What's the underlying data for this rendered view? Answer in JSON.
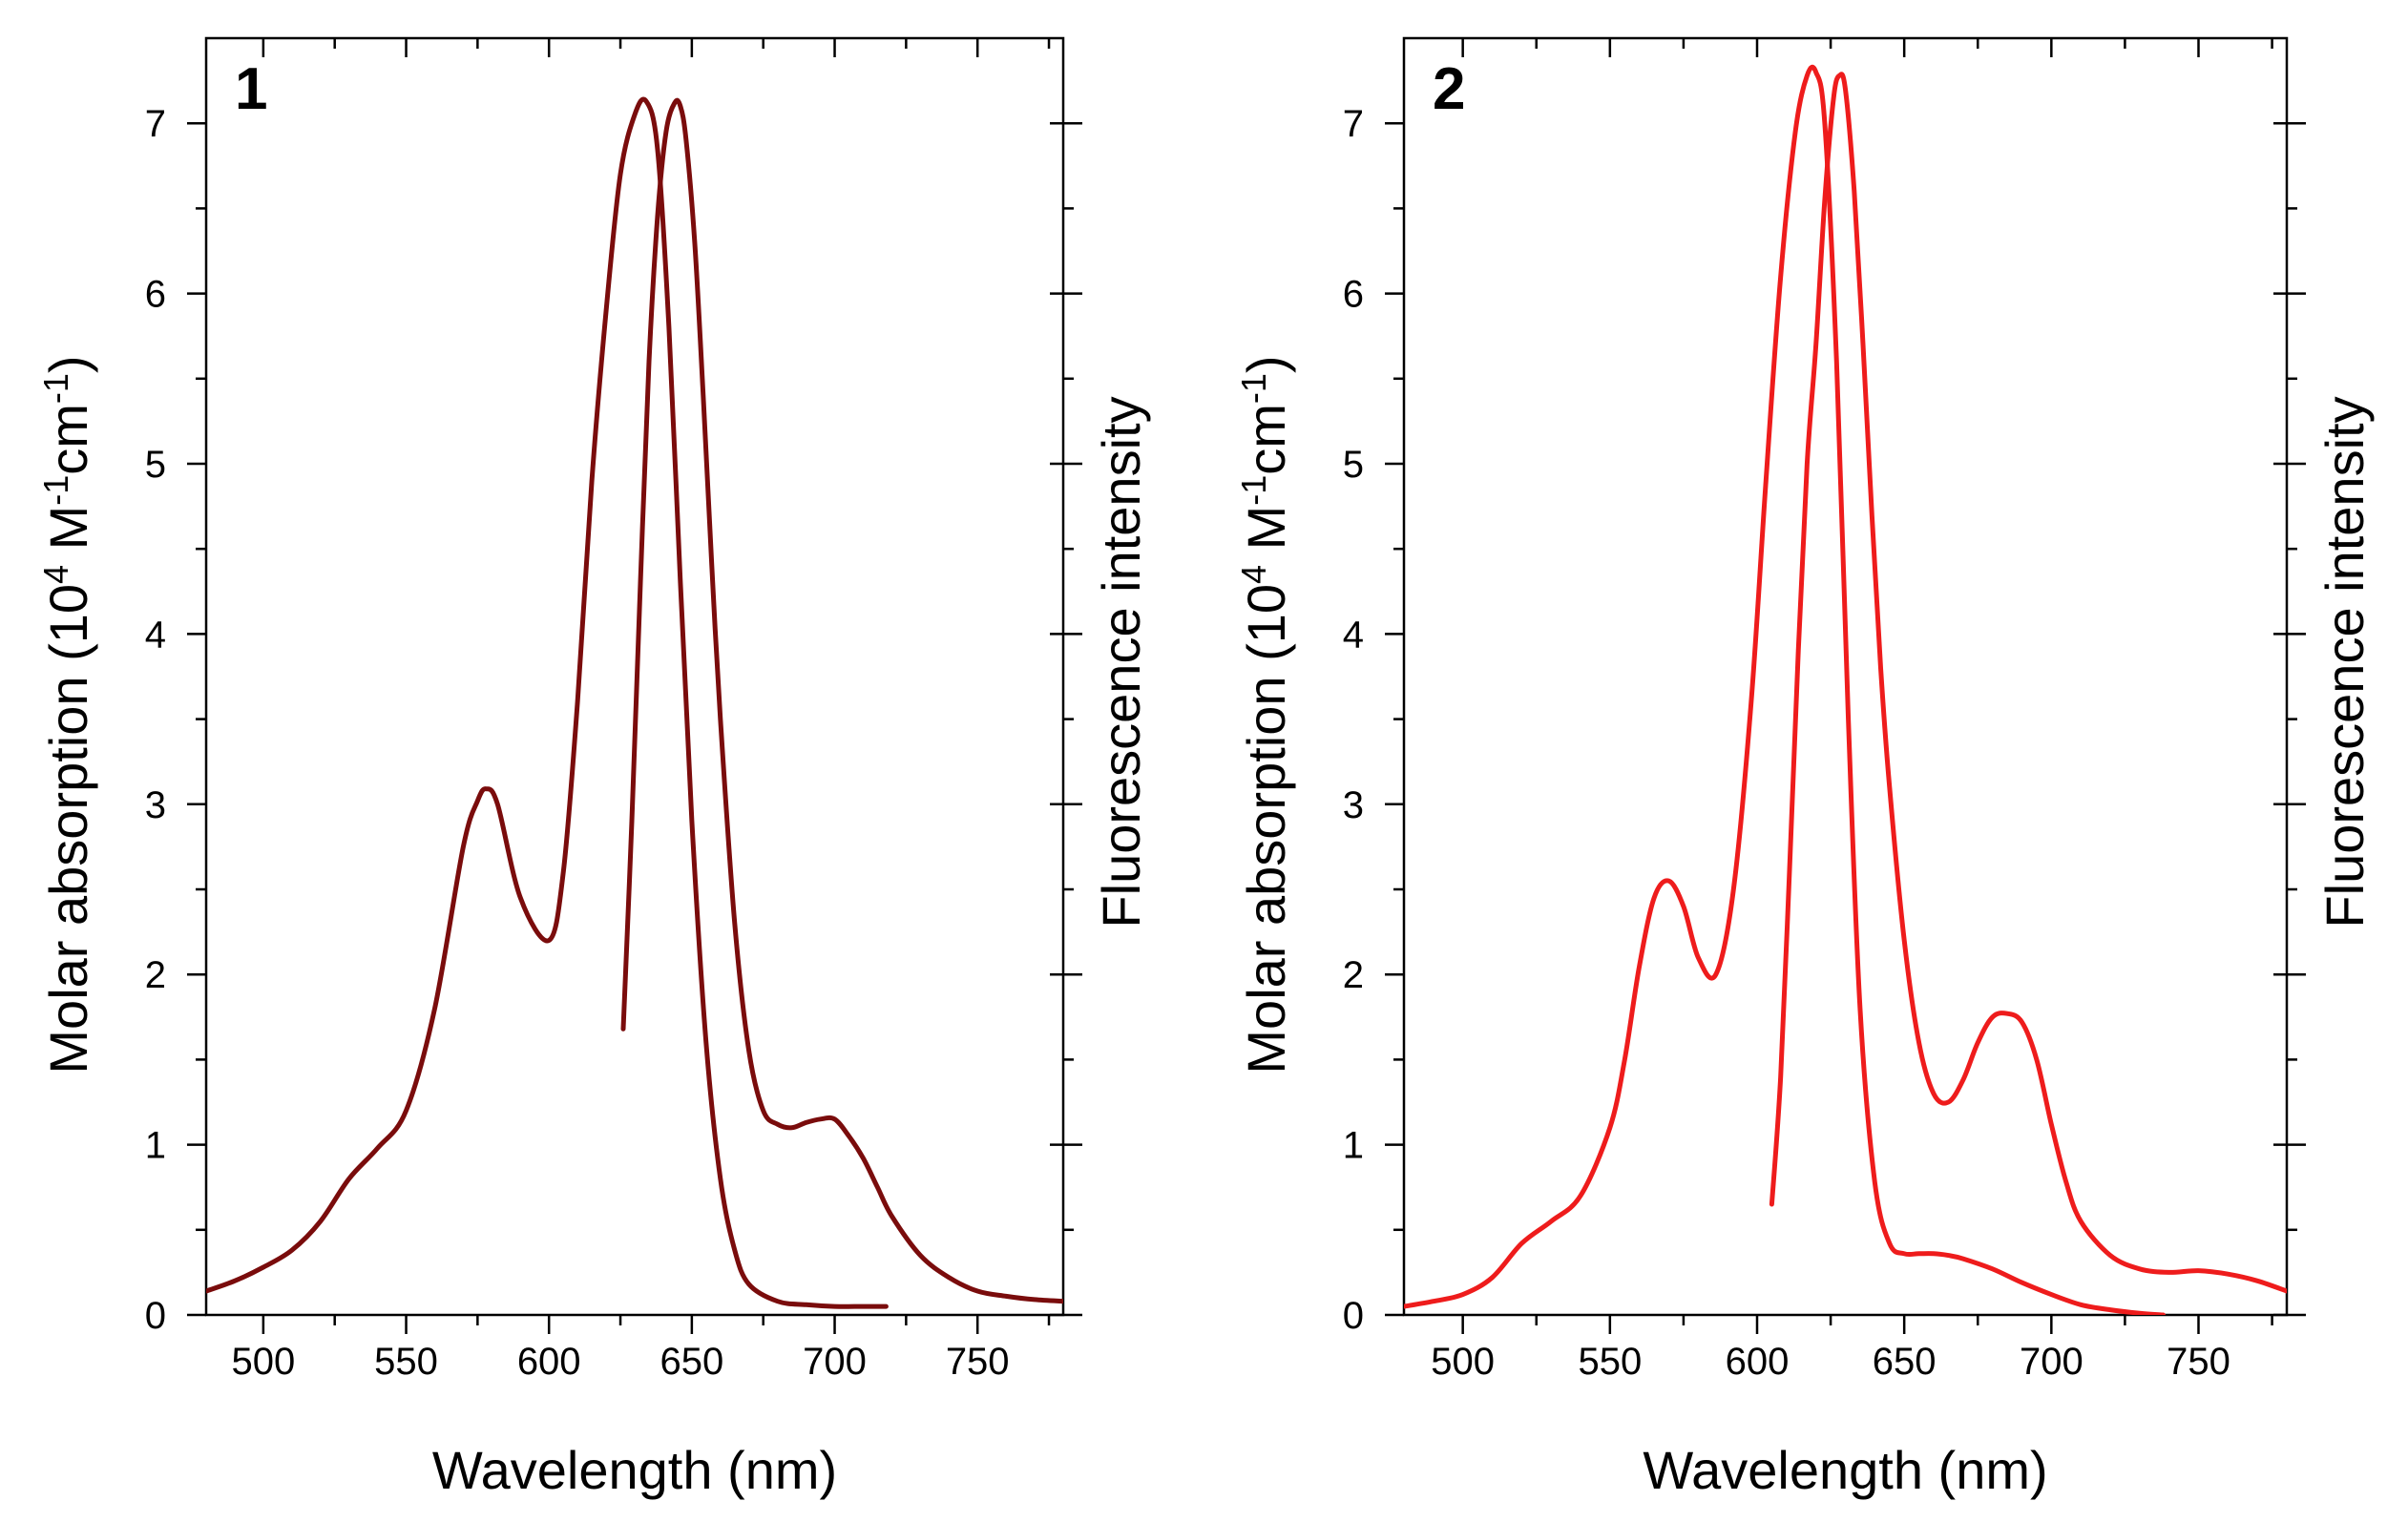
{
  "chart_data": [
    {
      "type": "line",
      "panel_label": "1",
      "xlabel": "Wavelength (nm)",
      "ylabel_left": {
        "main": "Molar absorption (10",
        "sup1": "4",
        "mid1": " M",
        "sup2": "-1",
        "mid2": "cm",
        "sup3": "-1",
        "end": ")"
      },
      "ylabel_right": "Fluorescence intensity",
      "xlim": [
        480,
        780
      ],
      "ylim": [
        0,
        7.5
      ],
      "x_ticks": [
        500,
        550,
        600,
        650,
        700,
        750
      ],
      "x_tick_labels": [
        "500",
        "550",
        "600",
        "650",
        "700",
        "750"
      ],
      "y_ticks": [
        0,
        1,
        2,
        3,
        4,
        5,
        6,
        7
      ],
      "y_tick_labels": [
        "0",
        "1",
        "2",
        "3",
        "4",
        "5",
        "6",
        "7"
      ],
      "color": "#7a0c0c",
      "series": [
        {
          "name": "Absorption",
          "x": [
            480,
            490,
            500,
            510,
            520,
            530,
            540,
            550,
            560,
            570,
            575,
            578,
            582,
            590,
            600,
            605,
            610,
            615,
            620,
            625,
            630,
            634,
            638,
            642,
            646,
            650,
            655,
            660,
            665,
            670,
            680,
            690,
            700,
            710,
            718
          ],
          "y": [
            0.14,
            0.2,
            0.28,
            0.38,
            0.55,
            0.8,
            0.98,
            1.2,
            1.8,
            2.75,
            3.02,
            3.09,
            3.0,
            2.45,
            2.2,
            2.6,
            3.6,
            4.9,
            5.9,
            6.7,
            7.05,
            7.13,
            6.85,
            5.8,
            4.3,
            2.9,
            1.6,
            0.8,
            0.38,
            0.18,
            0.08,
            0.06,
            0.05,
            0.05,
            0.05
          ]
        },
        {
          "name": "Fluorescence",
          "x": [
            626,
            629,
            632,
            635,
            638,
            641,
            644,
            646,
            648,
            651,
            654,
            657,
            660,
            665,
            670,
            675,
            680,
            685,
            690,
            695,
            700,
            705,
            710,
            715,
            720,
            730,
            740,
            750,
            760,
            770,
            780
          ],
          "y": [
            1.68,
            2.9,
            4.3,
            5.6,
            6.45,
            6.95,
            7.12,
            7.1,
            6.9,
            6.3,
            5.4,
            4.4,
            3.5,
            2.3,
            1.55,
            1.2,
            1.12,
            1.1,
            1.13,
            1.15,
            1.15,
            1.05,
            0.92,
            0.75,
            0.58,
            0.35,
            0.22,
            0.14,
            0.11,
            0.09,
            0.08
          ]
        }
      ]
    },
    {
      "type": "line",
      "panel_label": "2",
      "xlabel": "Wavelength (nm)",
      "ylabel_left": {
        "main": "Molar absorption (10",
        "sup1": "4",
        "mid1": " M",
        "sup2": "-1",
        "mid2": "cm",
        "sup3": "-1",
        "end": ")"
      },
      "ylabel_right": "Fluorescence intensity",
      "xlim": [
        480,
        780
      ],
      "ylim": [
        0,
        7.5
      ],
      "x_ticks": [
        500,
        550,
        600,
        650,
        700,
        750
      ],
      "x_tick_labels": [
        "500",
        "550",
        "600",
        "650",
        "700",
        "750"
      ],
      "y_ticks": [
        0,
        1,
        2,
        3,
        4,
        5,
        6,
        7
      ],
      "y_tick_labels": [
        "0",
        "1",
        "2",
        "3",
        "4",
        "5",
        "6",
        "7"
      ],
      "color": "#ee1c1c",
      "series": [
        {
          "name": "Absorption",
          "x": [
            480,
            490,
            500,
            510,
            520,
            530,
            540,
            550,
            555,
            560,
            565,
            570,
            575,
            580,
            586,
            592,
            598,
            603,
            608,
            613,
            617,
            620,
            623,
            627,
            631,
            635,
            640,
            645,
            650,
            655,
            660,
            665,
            670,
            680,
            690,
            700,
            710,
            720,
            730,
            738
          ],
          "y": [
            0.05,
            0.08,
            0.12,
            0.22,
            0.42,
            0.55,
            0.7,
            1.1,
            1.5,
            2.05,
            2.45,
            2.55,
            2.4,
            2.1,
            2.0,
            2.5,
            3.6,
            4.9,
            6.1,
            6.95,
            7.28,
            7.3,
            7.0,
            5.6,
            3.5,
            1.8,
            0.78,
            0.42,
            0.36,
            0.36,
            0.36,
            0.35,
            0.33,
            0.27,
            0.19,
            0.12,
            0.06,
            0.03,
            0.01,
            0.0
          ]
        },
        {
          "name": "Fluorescence",
          "x": [
            605,
            608,
            611,
            614,
            617,
            620,
            623,
            626,
            628,
            630,
            633,
            636,
            639,
            642,
            645,
            650,
            655,
            660,
            665,
            670,
            675,
            680,
            685,
            690,
            695,
            700,
            705,
            710,
            720,
            730,
            740,
            750,
            760,
            770,
            780
          ],
          "y": [
            0.65,
            1.4,
            2.6,
            3.9,
            5.0,
            5.7,
            6.55,
            7.15,
            7.28,
            7.2,
            6.6,
            5.7,
            4.7,
            3.8,
            3.1,
            2.2,
            1.6,
            1.3,
            1.25,
            1.38,
            1.6,
            1.75,
            1.77,
            1.72,
            1.5,
            1.12,
            0.78,
            0.55,
            0.35,
            0.27,
            0.25,
            0.26,
            0.24,
            0.2,
            0.14
          ]
        }
      ]
    }
  ]
}
